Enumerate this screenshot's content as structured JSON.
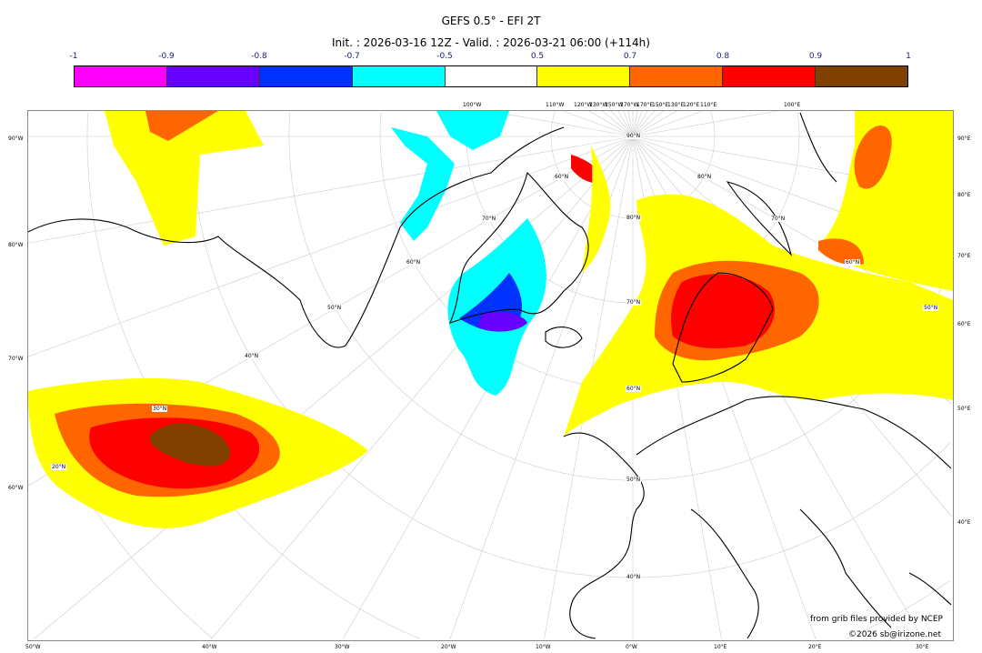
{
  "title": "GEFS 0.5° - EFI 2T",
  "subtitle": "Init. : 2026-03-16 12Z - Valid. : 2026-03-21 06:00 (+114h)",
  "colorbar": {
    "ticks": [
      "-1",
      "-0.9",
      "-0.8",
      "-0.7",
      "-0.5",
      "0.5",
      "0.7",
      "0.8",
      "0.9",
      "1"
    ],
    "colors": [
      "#ff00ff",
      "#6600ff",
      "#0033ff",
      "#00ffff",
      "#ffffff",
      "#ffff00",
      "#ff6600",
      "#ff0000",
      "#804000"
    ]
  },
  "map": {
    "projection": "polar stereographic",
    "left_labels": [
      "90°W",
      "80°W",
      "70°W",
      "60°W"
    ],
    "right_labels": [
      "90°E",
      "80°E",
      "70°E",
      "60°E",
      "50°E",
      "40°E"
    ],
    "bottom_labels": [
      "50°W",
      "40°W",
      "30°W",
      "20°W",
      "10°W",
      "0°W",
      "10°E",
      "20°E",
      "30°E"
    ],
    "top_labels": [
      "100°W",
      "110°W",
      "120°W",
      "130°W",
      "150°W",
      "170°W",
      "170°E",
      "150°E",
      "130°E",
      "120°E",
      "110°E",
      "100°E"
    ],
    "lat_labels_center": [
      "90°N",
      "80°N",
      "70°N",
      "60°N",
      "50°N",
      "40°N"
    ],
    "lat_labels_left": [
      "60°N",
      "70°N",
      "60°N",
      "50°N",
      "40°N",
      "30°N",
      "20°N"
    ],
    "lat_labels_right": [
      "80°N",
      "70°N",
      "60°N",
      "50°N"
    ]
  },
  "credits": {
    "source": "from grib files provided by NCEP",
    "copyright": "©2026 sb@irizone.net"
  }
}
